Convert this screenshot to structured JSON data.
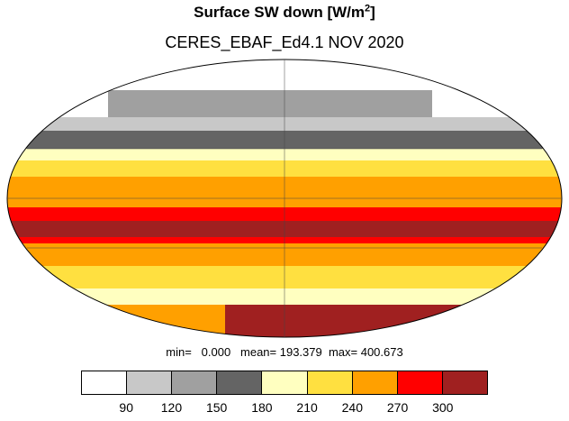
{
  "title": {
    "main": "Surface SW down [W/m",
    "sup": "2",
    "close": "]"
  },
  "subtitle": "CERES_EBAF_Ed4.1 NOV 2020",
  "stats": "min=   0.000   mean= 193.379  max= 400.673",
  "colorbar": {
    "labels": [
      "90",
      "120",
      "150",
      "180",
      "210",
      "240",
      "270",
      "300"
    ],
    "colors": [
      "#ffffff",
      "#c8c8c8",
      "#a0a0a0",
      "#646464",
      "#ffffc0",
      "#ffe040",
      "#ffa000",
      "#ff0000",
      "#a02020"
    ]
  },
  "chart_data": {
    "type": "heatmap",
    "projection": "mollweide",
    "units": "W/m2",
    "bins": [
      90,
      120,
      150,
      180,
      210,
      240,
      270,
      300
    ],
    "min": 0.0,
    "mean": 193.379,
    "max": 400.673,
    "latitude_bands": [
      {
        "lat_range": [
          75,
          90
        ],
        "class": "0-90"
      },
      {
        "lat_range": [
          62,
          75
        ],
        "class": "90-150"
      },
      {
        "lat_range": [
          50,
          62
        ],
        "class": "120-180"
      },
      {
        "lat_range": [
          38,
          50
        ],
        "class": "180-210"
      },
      {
        "lat_range": [
          25,
          38
        ],
        "class": "210-240"
      },
      {
        "lat_range": [
          10,
          25
        ],
        "class": "240-270"
      },
      {
        "lat_range": [
          -10,
          10
        ],
        "class": "240-300"
      },
      {
        "lat_range": [
          -35,
          -10
        ],
        "class": "270-400"
      },
      {
        "lat_range": [
          -55,
          -35
        ],
        "class": "240-300"
      },
      {
        "lat_range": [
          -70,
          -55
        ],
        "class": "210-270"
      },
      {
        "lat_range": [
          -90,
          -70
        ],
        "class": "300-400"
      }
    ]
  }
}
